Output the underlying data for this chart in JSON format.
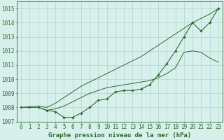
{
  "xlabel": "Graphe pression niveau de la mer (hPa)",
  "x_values": [
    0,
    1,
    2,
    3,
    4,
    5,
    6,
    7,
    8,
    9,
    10,
    11,
    12,
    13,
    14,
    15,
    16,
    17,
    18,
    19,
    20,
    21,
    22,
    23
  ],
  "main_y": [
    1008.0,
    1008.0,
    1008.0,
    1007.8,
    1007.7,
    1007.3,
    1007.3,
    1007.6,
    1008.0,
    1008.5,
    1008.6,
    1009.1,
    1009.2,
    1009.2,
    1009.3,
    1009.6,
    1010.3,
    1011.1,
    1012.0,
    1013.0,
    1014.0,
    1013.4,
    1014.0,
    1015.0
  ],
  "upper_y": [
    1008.0,
    1008.05,
    1008.1,
    1008.0,
    1008.3,
    1008.7,
    1009.1,
    1009.5,
    1009.8,
    1010.1,
    1010.4,
    1010.7,
    1011.0,
    1011.3,
    1011.6,
    1012.0,
    1012.4,
    1012.8,
    1013.2,
    1013.6,
    1014.0,
    1014.3,
    1014.6,
    1015.0
  ],
  "middle_y": [
    1008.0,
    1008.0,
    1008.0,
    1007.8,
    1007.9,
    1008.1,
    1008.4,
    1008.7,
    1009.0,
    1009.2,
    1009.4,
    1009.5,
    1009.6,
    1009.7,
    1009.8,
    1009.9,
    1010.1,
    1010.4,
    1010.8,
    1011.9,
    1012.0,
    1011.9,
    1011.5,
    1011.2
  ],
  "line_color": "#2d6a2d",
  "bg_color": "#d8f0ec",
  "grid_color": "#a8ccc8",
  "ylim": [
    1007.0,
    1015.5
  ],
  "yticks": [
    1007,
    1008,
    1009,
    1010,
    1011,
    1012,
    1013,
    1014,
    1015
  ],
  "xlabel_fontsize": 6.5,
  "tick_fontsize": 5.5
}
